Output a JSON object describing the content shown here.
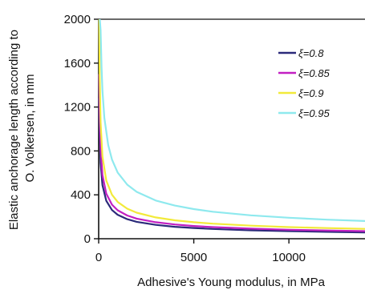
{
  "chart_data": {
    "type": "line",
    "xlabel": "Adhesive's Young modulus, in MPa",
    "ylabel_lines": [
      "Elastic anchorage length according to",
      "O. Volkersen, in mm"
    ],
    "xlim": [
      0,
      14000
    ],
    "ylim": [
      0,
      2000
    ],
    "x_ticks": [
      0,
      5000,
      10000
    ],
    "x_tick_labels": [
      "0",
      "5000",
      "10000"
    ],
    "y_ticks": [
      0,
      400,
      800,
      1200,
      1600,
      2000
    ],
    "y_tick_labels": [
      "0",
      "400",
      "800",
      "1200",
      "1600",
      "2000"
    ],
    "grid": false,
    "legend_position": "top-right",
    "series": [
      {
        "name": "ξ=0.8",
        "color": "#2b2a7a",
        "x": [
          30,
          50,
          100,
          200,
          400,
          700,
          1000,
          1500,
          2000,
          3000,
          4000,
          5000,
          6000,
          8000,
          10000,
          12000,
          14000
        ],
        "y": [
          1280,
          975,
          690,
          488,
          345,
          261,
          218,
          178,
          154,
          126,
          109,
          98,
          89,
          77,
          69,
          63,
          58
        ]
      },
      {
        "name": "ξ=0.85",
        "color": "#c21fc2",
        "x": [
          30,
          50,
          100,
          200,
          400,
          700,
          1000,
          1500,
          2000,
          3000,
          4000,
          5000,
          6000,
          8000,
          10000,
          12000,
          14000
        ],
        "y": [
          1500,
          1160,
          820,
          580,
          410,
          310,
          259,
          212,
          183,
          150,
          130,
          116,
          106,
          92,
          82,
          75,
          69
        ]
      },
      {
        "name": "ξ=0.9",
        "color": "#f2ea3a",
        "x": [
          30,
          50,
          100,
          200,
          400,
          700,
          1000,
          1500,
          2000,
          3000,
          4000,
          5000,
          6000,
          8000,
          10000,
          12000,
          14000
        ],
        "y": [
          2000,
          1500,
          1060,
          750,
          530,
          401,
          335,
          274,
          237,
          194,
          168,
          150,
          137,
          119,
          106,
          97,
          90
        ]
      },
      {
        "name": "ξ=0.95",
        "color": "#8ee9ee",
        "x": [
          60,
          100,
          150,
          200,
          300,
          500,
          700,
          1000,
          1500,
          2000,
          3000,
          4000,
          5000,
          6000,
          8000,
          10000,
          12000,
          14000
        ],
        "y": [
          2000,
          1900,
          1560,
          1350,
          1100,
          853,
          721,
          603,
          493,
          427,
          348,
          302,
          270,
          246,
          213,
          191,
          174,
          161
        ]
      }
    ]
  }
}
